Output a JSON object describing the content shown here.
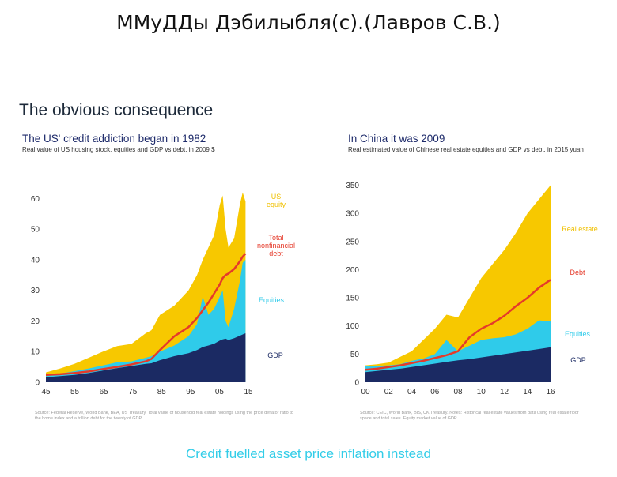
{
  "header": {
    "title": "ММуДДы Дэбилыбля(с).(Лавров С.В.)"
  },
  "slide": {
    "title": "The obvious consequence",
    "caption": "Credit fuelled asset price inflation instead"
  },
  "colors": {
    "housing": "#f7c800",
    "equities": "#2fcbea",
    "gdp": "#1b2a63",
    "debt": "#e53a2a",
    "caption": "#33cde8"
  },
  "chart_data": [
    {
      "type": "area",
      "title": "The US' credit addiction began in 1982",
      "subtitle": "Real value of US housing stock, equities and GDP vs debt, in 2009 $",
      "source": "Source: Federal Reserve, World Bank, BEA, US Treasury. Total value of household real estate holdings using the price deflator ratio to the home index and a trillion debt for the twenty of GDP.",
      "x_ticks": [
        "45",
        "55",
        "65",
        "75",
        "85",
        "95",
        "05",
        "15"
      ],
      "y_ticks": [
        0,
        10,
        20,
        30,
        40,
        50,
        60
      ],
      "xlim": [
        1945,
        2016
      ],
      "ylim": [
        0,
        65
      ],
      "x": [
        1945,
        1950,
        1955,
        1960,
        1965,
        1970,
        1975,
        1980,
        1982,
        1985,
        1990,
        1995,
        1998,
        2000,
        2002,
        2004,
        2006,
        2007,
        2008,
        2009,
        2011,
        2013,
        2014,
        2015
      ],
      "series": [
        {
          "name": "",
          "label_lines": [
            "US",
            "equity"
          ],
          "values": [
            3.2,
            4.5,
            6,
            8,
            10,
            11.8,
            12.5,
            16,
            17,
            22,
            25,
            30,
            35,
            40,
            44,
            48,
            58,
            61,
            50,
            44,
            47,
            58,
            62,
            59
          ]
        },
        {
          "name": "Equities",
          "label_lines": [
            "Equities"
          ],
          "values": [
            2,
            2.8,
            3.6,
            4.5,
            5.5,
            6.5,
            6.8,
            8,
            8.5,
            10,
            12,
            15,
            19,
            28,
            22,
            24,
            28,
            30,
            20,
            18,
            24,
            33,
            39,
            40
          ]
        },
        {
          "name": "GDP",
          "label_lines": [
            "GDP"
          ],
          "values": [
            1.6,
            2,
            2.4,
            3,
            3.8,
            4.6,
            5.3,
            6,
            6.2,
            7.2,
            8.5,
            9.5,
            10.5,
            11.5,
            12,
            12.6,
            13.6,
            14,
            14.2,
            13.8,
            14.4,
            15.2,
            15.6,
            16
          ]
        },
        {
          "name": "Total nonfinancial debt",
          "label_lines": [
            "Total",
            "nonfinancial",
            "debt"
          ],
          "values": [
            2.4,
            2.6,
            3,
            3.5,
            4.3,
            5,
            5.8,
            6.8,
            7.6,
            10.5,
            15,
            18,
            21,
            23.5,
            26,
            29,
            32,
            34,
            35,
            35.5,
            37,
            39.5,
            41,
            42
          ]
        }
      ]
    },
    {
      "type": "area",
      "title": "In China it was 2009",
      "subtitle": "Real estimated value of Chinese real estate equities and GDP vs debt, in 2015 yuan",
      "source": "Source: CEIC, World Bank, BIS, UK Treasury. Notes: Historical real estate values from data using real estate floor space and total sales. Equity market value of GDP.",
      "x_ticks": [
        "00",
        "02",
        "04",
        "06",
        "08",
        "10",
        "12",
        "14",
        "16"
      ],
      "y_ticks": [
        0,
        50,
        100,
        150,
        200,
        250,
        300,
        350
      ],
      "xlim": [
        2000,
        2016
      ],
      "ylim": [
        0,
        355
      ],
      "x": [
        2000,
        2001,
        2002,
        2003,
        2004,
        2005,
        2006,
        2007,
        2008,
        2009,
        2010,
        2011,
        2012,
        2013,
        2014,
        2015,
        2016
      ],
      "series": [
        {
          "name": "Real estate",
          "label_lines": [
            "Real estate"
          ],
          "values": [
            30,
            32,
            35,
            45,
            55,
            75,
            95,
            120,
            115,
            150,
            185,
            210,
            235,
            265,
            300,
            325,
            350
          ]
        },
        {
          "name": "Equities",
          "label_lines": [
            "Equities"
          ],
          "values": [
            28,
            29,
            30,
            32,
            38,
            42,
            50,
            75,
            55,
            65,
            75,
            78,
            80,
            85,
            95,
            110,
            108
          ]
        },
        {
          "name": "GDP",
          "label_lines": [
            "GDP"
          ],
          "values": [
            18,
            20,
            22,
            24,
            27,
            30,
            33,
            36,
            39,
            41,
            44,
            47,
            50,
            53,
            56,
            59,
            62
          ]
        },
        {
          "name": "Debt",
          "label_lines": [
            "Debt"
          ],
          "values": [
            22,
            24,
            27,
            30,
            34,
            38,
            43,
            48,
            55,
            80,
            95,
            105,
            118,
            135,
            150,
            168,
            182
          ]
        }
      ]
    }
  ]
}
